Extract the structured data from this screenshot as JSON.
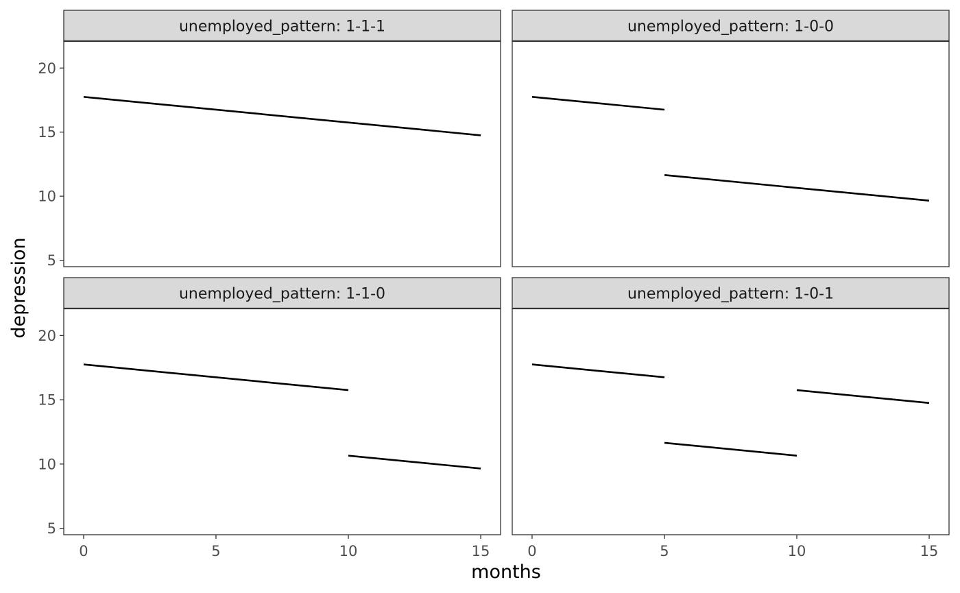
{
  "chart_data": {
    "type": "line",
    "xlabel": "months",
    "ylabel": "depression",
    "xlim": [
      -0.75,
      15.75
    ],
    "ylim": [
      4.5,
      22.1
    ],
    "x_ticks": [
      0,
      5,
      10,
      15
    ],
    "y_ticks": [
      5,
      10,
      15,
      20
    ],
    "line_color": "#000000",
    "grid": false,
    "layout": "2x2 facets",
    "panels": [
      {
        "strip": "unemployed_pattern: 1-1-1",
        "segments": [
          {
            "x": [
              0,
              15
            ],
            "y": [
              17.75,
              14.75
            ]
          }
        ]
      },
      {
        "strip": "unemployed_pattern: 1-0-0",
        "segments": [
          {
            "x": [
              0,
              5
            ],
            "y": [
              17.75,
              16.75
            ]
          },
          {
            "x": [
              5,
              15
            ],
            "y": [
              11.65,
              9.65
            ]
          }
        ]
      },
      {
        "strip": "unemployed_pattern: 1-1-0",
        "segments": [
          {
            "x": [
              0,
              10
            ],
            "y": [
              17.75,
              15.75
            ]
          },
          {
            "x": [
              10,
              15
            ],
            "y": [
              10.65,
              9.65
            ]
          }
        ]
      },
      {
        "strip": "unemployed_pattern: 1-0-1",
        "segments": [
          {
            "x": [
              0,
              5
            ],
            "y": [
              17.75,
              16.75
            ]
          },
          {
            "x": [
              5,
              10
            ],
            "y": [
              11.65,
              10.65
            ]
          },
          {
            "x": [
              10,
              15
            ],
            "y": [
              15.75,
              14.75
            ]
          }
        ]
      }
    ]
  }
}
